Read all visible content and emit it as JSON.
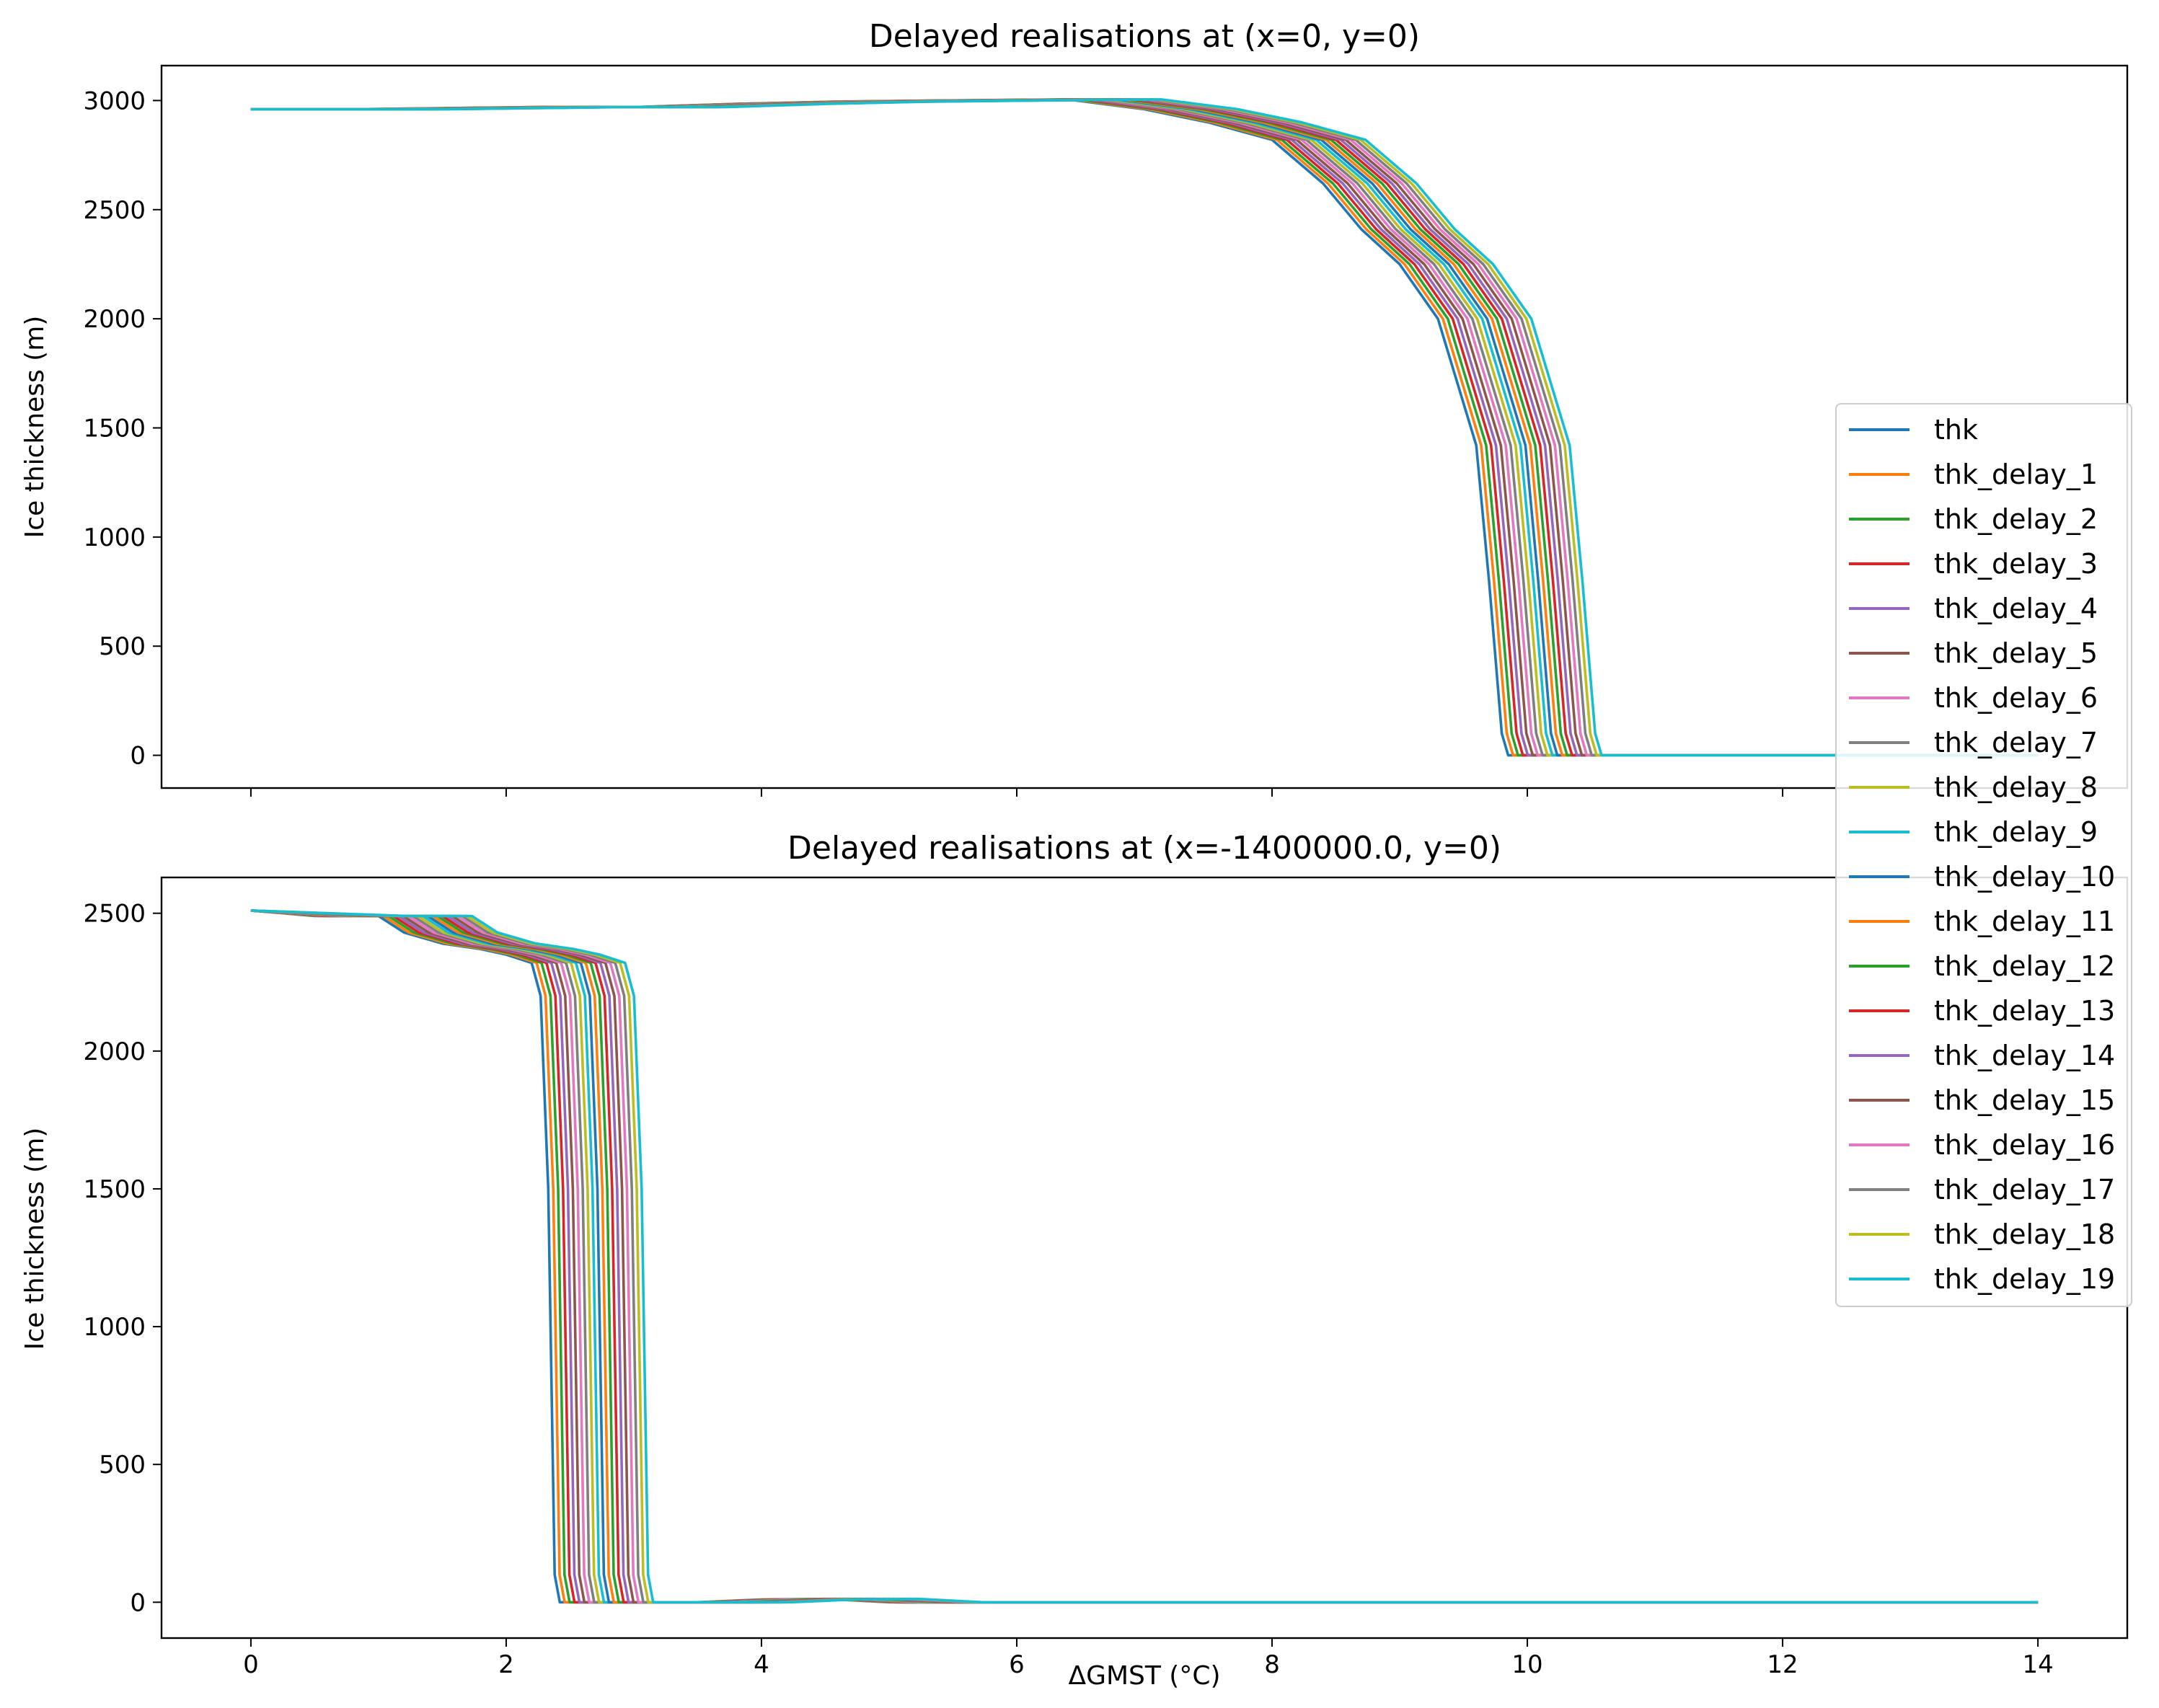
{
  "chart_data": [
    {
      "type": "line",
      "title": "Delayed realisations at (x=0, y=0)",
      "xlabel": "",
      "ylabel": "Ice thickness (m)",
      "xlim": [
        -0.7,
        14.7
      ],
      "ylim": [
        -150,
        3160
      ],
      "xticks": [
        0,
        2,
        4,
        6,
        8,
        10,
        12,
        14
      ],
      "xtick_labels_visible": false,
      "yticks": [
        0,
        500,
        1000,
        1500,
        2000,
        2500,
        3000
      ],
      "ytick_labels": [
        "0",
        "500",
        "1000",
        "1500",
        "2000",
        "2500",
        "3000"
      ],
      "grid": false,
      "legend": "right (spanning both panels)",
      "series_template": "thk",
      "delay_step": 0.0385,
      "x": [
        0.0,
        0.8,
        1.5,
        2.2,
        3.0,
        3.8,
        4.6,
        5.4,
        6.4,
        7.0,
        7.5,
        8.0,
        8.4,
        8.7,
        9.0,
        9.3,
        9.6,
        9.7,
        9.8,
        9.85,
        10.4,
        14.0
      ],
      "y": [
        2960,
        2960,
        2965,
        2970,
        2970,
        2985,
        2995,
        3000,
        3005,
        2960,
        2900,
        2820,
        2620,
        2410,
        2250,
        2000,
        1420,
        800,
        100,
        0,
        0,
        0
      ],
      "series": [
        {
          "name": "thk",
          "color": "#1f77b4"
        },
        {
          "name": "thk_delay_1",
          "color": "#ff7f0e"
        },
        {
          "name": "thk_delay_2",
          "color": "#2ca02c"
        },
        {
          "name": "thk_delay_3",
          "color": "#d62728"
        },
        {
          "name": "thk_delay_4",
          "color": "#9467bd"
        },
        {
          "name": "thk_delay_5",
          "color": "#8c564b"
        },
        {
          "name": "thk_delay_6",
          "color": "#e377c2"
        },
        {
          "name": "thk_delay_7",
          "color": "#7f7f7f"
        },
        {
          "name": "thk_delay_8",
          "color": "#bcbd22"
        },
        {
          "name": "thk_delay_9",
          "color": "#17becf"
        },
        {
          "name": "thk_delay_10",
          "color": "#1f77b4"
        },
        {
          "name": "thk_delay_11",
          "color": "#ff7f0e"
        },
        {
          "name": "thk_delay_12",
          "color": "#2ca02c"
        },
        {
          "name": "thk_delay_13",
          "color": "#d62728"
        },
        {
          "name": "thk_delay_14",
          "color": "#9467bd"
        },
        {
          "name": "thk_delay_15",
          "color": "#8c564b"
        },
        {
          "name": "thk_delay_16",
          "color": "#e377c2"
        },
        {
          "name": "thk_delay_17",
          "color": "#7f7f7f"
        },
        {
          "name": "thk_delay_18",
          "color": "#bcbd22"
        },
        {
          "name": "thk_delay_19",
          "color": "#17becf"
        }
      ]
    },
    {
      "type": "line",
      "title": "Delayed realisations at (x=-1400000.0, y=0)",
      "xlabel": "ΔGMST (°C)",
      "ylabel": "Ice thickness (m)",
      "xlim": [
        -0.7,
        14.7
      ],
      "ylim": [
        -130,
        2630
      ],
      "xticks": [
        0,
        2,
        4,
        6,
        8,
        10,
        12,
        14
      ],
      "xtick_labels": [
        "0",
        "2",
        "4",
        "6",
        "8",
        "10",
        "12",
        "14"
      ],
      "yticks": [
        0,
        500,
        1000,
        1500,
        2000,
        2500
      ],
      "ytick_labels": [
        "0",
        "500",
        "1000",
        "1500",
        "2000",
        "2500"
      ],
      "grid": false,
      "series_template": "thk",
      "delay_step": 0.0385,
      "x": [
        0.0,
        0.5,
        1.0,
        1.2,
        1.5,
        1.8,
        2.0,
        2.2,
        2.27,
        2.33,
        2.38,
        2.42,
        2.5,
        3.0,
        3.5,
        4.0,
        4.5,
        5.0,
        14.0
      ],
      "y": [
        2510,
        2490,
        2490,
        2430,
        2390,
        2370,
        2350,
        2320,
        2200,
        1500,
        100,
        0,
        0,
        0,
        0,
        10,
        12,
        0,
        0
      ]
    }
  ]
}
